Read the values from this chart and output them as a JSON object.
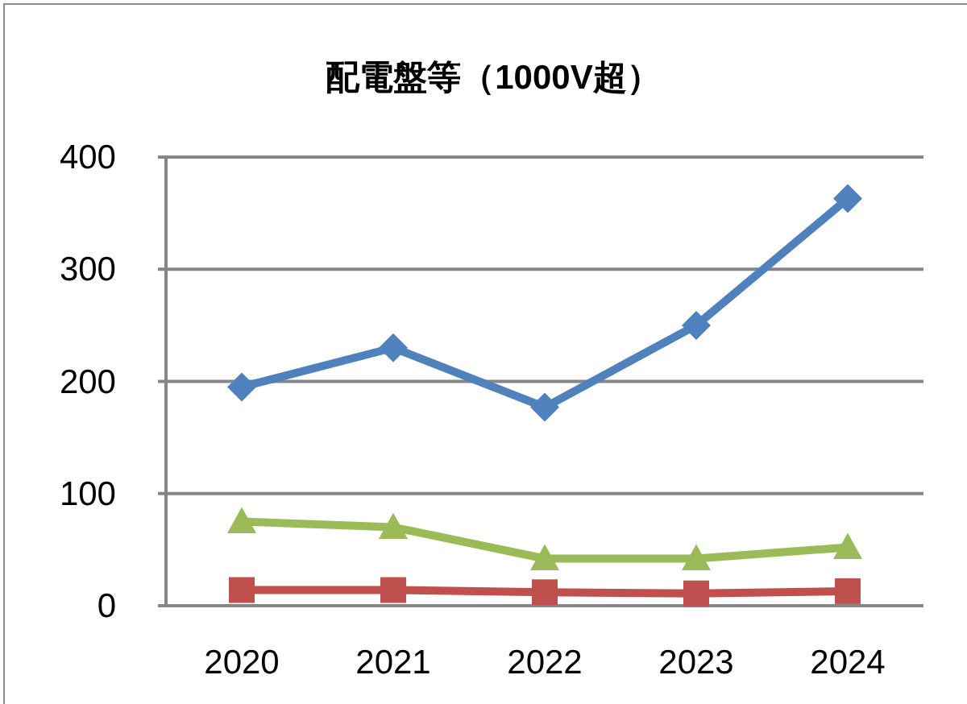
{
  "chart_data": {
    "type": "line",
    "title": "配電盤等（1000V超）",
    "categories": [
      "2020",
      "2021",
      "2022",
      "2023",
      "2024"
    ],
    "series": [
      {
        "color": "#4f81bd",
        "marker": "diamond",
        "values": [
          195,
          230,
          177,
          250,
          363
        ]
      },
      {
        "color": "#c0504d",
        "marker": "square",
        "values": [
          14,
          14,
          12,
          11,
          13
        ]
      },
      {
        "color": "#9bbb59",
        "marker": "triangle",
        "values": [
          75,
          70,
          42,
          42,
          52
        ]
      }
    ],
    "ylim": [
      0,
      400
    ],
    "yticks": [
      0,
      100,
      200,
      300,
      400
    ],
    "grid": "y"
  }
}
